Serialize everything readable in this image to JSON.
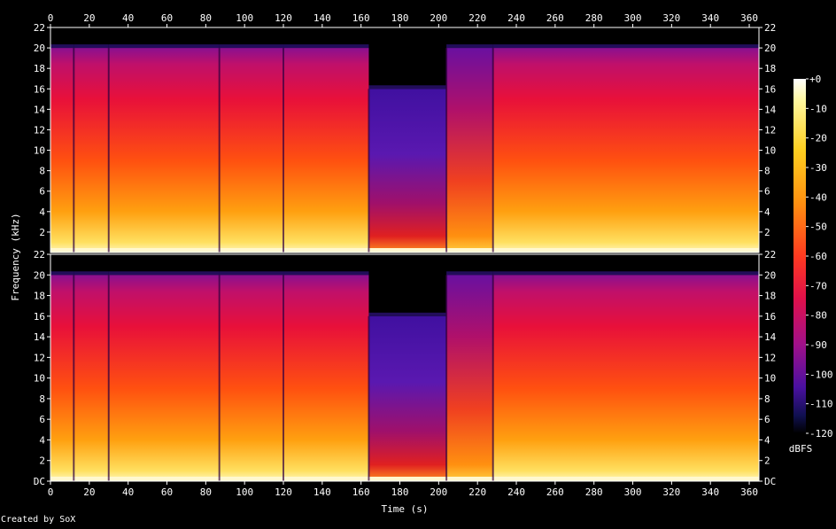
{
  "chart_data": {
    "type": "heatmap",
    "title": "",
    "xlabel": "Time (s)",
    "ylabel": "Frequency (kHz)",
    "xlim": [
      0,
      365
    ],
    "x_ticks": [
      "0",
      "20",
      "40",
      "60",
      "80",
      "100",
      "120",
      "140",
      "160",
      "180",
      "200",
      "220",
      "240",
      "260",
      "280",
      "300",
      "320",
      "340",
      "360"
    ],
    "ylim_khz": [
      0,
      22
    ],
    "y_ticks_channel1": [
      "2",
      "4",
      "6",
      "8",
      "10",
      "12",
      "14",
      "16",
      "18",
      "20",
      "22"
    ],
    "y_ticks_channel2": [
      "DC",
      "2",
      "4",
      "6",
      "8",
      "10",
      "12",
      "14",
      "16",
      "18",
      "20",
      "22"
    ],
    "channels": [
      "channel 1",
      "channel 2"
    ],
    "colorbar": {
      "label": "dBFS",
      "ticks": [
        "+0",
        "-10",
        "-20",
        "-30",
        "-40",
        "-50",
        "-60",
        "-70",
        "-80",
        "-90",
        "-100",
        "-110",
        "-120"
      ],
      "range": [
        -120,
        0
      ]
    },
    "segments_s": [
      {
        "start": 0,
        "end": 12,
        "level": "high",
        "cutoff_khz": 20
      },
      {
        "start": 12,
        "end": 30,
        "level": "high",
        "cutoff_khz": 20
      },
      {
        "start": 30,
        "end": 87,
        "level": "high",
        "cutoff_khz": 20
      },
      {
        "start": 87,
        "end": 120,
        "level": "high",
        "cutoff_khz": 20
      },
      {
        "start": 120,
        "end": 164,
        "level": "high",
        "cutoff_khz": 20
      },
      {
        "start": 164,
        "end": 204,
        "level": "low",
        "cutoff_khz": 16
      },
      {
        "start": 204,
        "end": 228,
        "level": "mid",
        "cutoff_khz": 20
      },
      {
        "start": 228,
        "end": 365,
        "level": "high",
        "cutoff_khz": 20
      }
    ],
    "grid": false,
    "legend": "right"
  },
  "credit": "Created by SoX"
}
